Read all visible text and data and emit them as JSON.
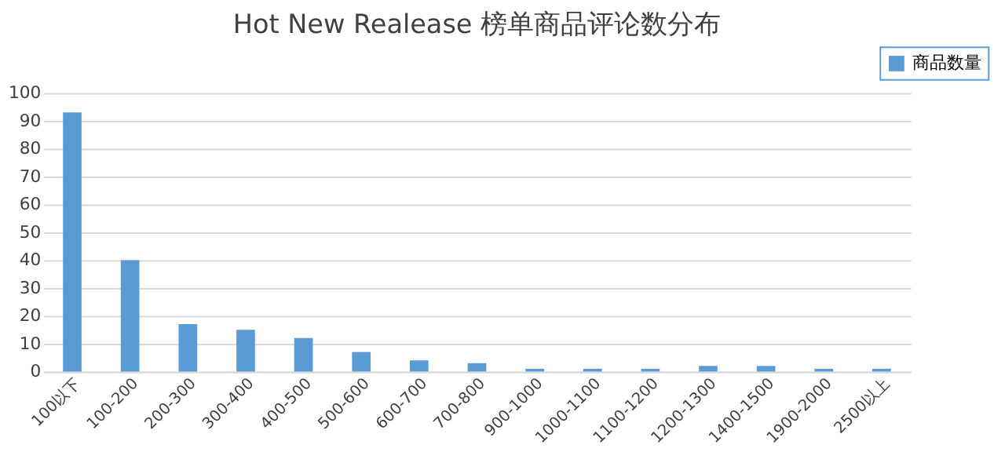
{
  "chart_data": {
    "type": "bar",
    "title": "Hot New Realease 榜单商品评论数分布",
    "categories": [
      "100以下",
      "100-200",
      "200-300",
      "300-400",
      "400-500",
      "500-600",
      "600-700",
      "700-800",
      "900-1000",
      "1000-1100",
      "1100-1200",
      "1200-1300",
      "1400-1500",
      "1900-2000",
      "2500以上"
    ],
    "series": [
      {
        "name": "商品数量",
        "color": "#5b9bd5",
        "values": [
          93,
          40,
          17,
          15,
          12,
          7,
          4,
          3,
          1,
          1,
          1,
          2,
          2,
          1,
          1
        ]
      }
    ],
    "ylim": [
      0,
      100
    ],
    "yticks": [
      0,
      10,
      20,
      30,
      40,
      50,
      60,
      70,
      80,
      90,
      100
    ],
    "grid": "y",
    "legend": "top right"
  }
}
